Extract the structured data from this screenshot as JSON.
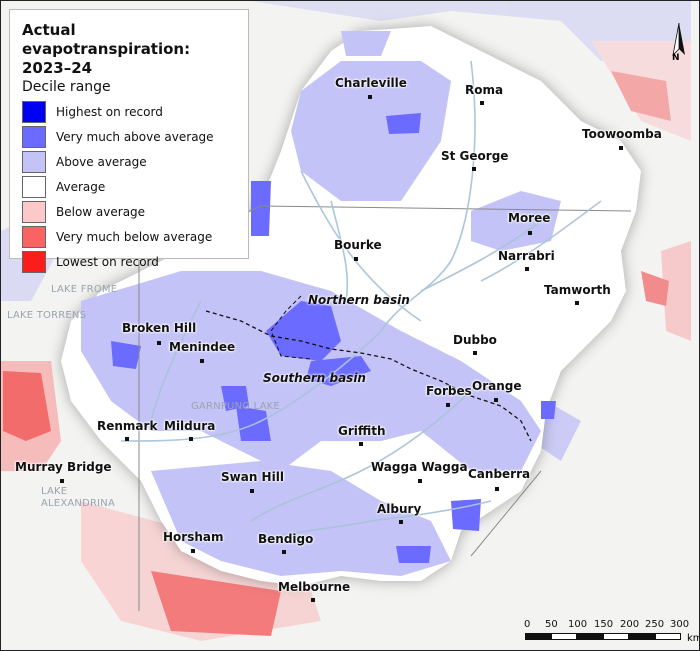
{
  "legend": {
    "title": "Actual evapotranspiration:\n2023–24",
    "subtitle": "Decile range",
    "items": [
      {
        "label": "Highest on record",
        "color": "#0000f5"
      },
      {
        "label": "Very much above average",
        "color": "#6b6bff"
      },
      {
        "label": "Above average",
        "color": "#c3c3f7"
      },
      {
        "label": "Average",
        "color": "#ffffff"
      },
      {
        "label": "Below average",
        "color": "#fcc8c8"
      },
      {
        "label": "Very much below average",
        "color": "#fb6262"
      },
      {
        "label": "Lowest on record",
        "color": "#fb1c1c"
      }
    ]
  },
  "towns": [
    {
      "name": "Charleville"
    },
    {
      "name": "Roma"
    },
    {
      "name": "Toowoomba"
    },
    {
      "name": "St George"
    },
    {
      "name": "Moree"
    },
    {
      "name": "Bourke"
    },
    {
      "name": "Narrabri"
    },
    {
      "name": "Tamworth"
    },
    {
      "name": "Broken Hill"
    },
    {
      "name": "Menindee"
    },
    {
      "name": "Dubbo"
    },
    {
      "name": "Forbes"
    },
    {
      "name": "Orange"
    },
    {
      "name": "Renmark"
    },
    {
      "name": "Mildura"
    },
    {
      "name": "Griffith"
    },
    {
      "name": "Murray Bridge"
    },
    {
      "name": "Wagga Wagga"
    },
    {
      "name": "Canberra"
    },
    {
      "name": "Swan Hill"
    },
    {
      "name": "Albury"
    },
    {
      "name": "Horsham"
    },
    {
      "name": "Bendigo"
    },
    {
      "name": "Melbourne"
    }
  ],
  "basins": {
    "northern": "Northern basin",
    "southern": "Southern basin"
  },
  "water_labels": {
    "lake_frome": "LAKE FROME",
    "lake_torrens": "LAKE TORRENS",
    "garnpung_lake": "GARNPUNG LAKE",
    "lake_alexandrina": "LAKE ALEXANDRINA"
  },
  "north_arrow": {
    "label": "N"
  },
  "scale_bar": {
    "ticks": [
      "0",
      "50",
      "100",
      "150",
      "200",
      "250",
      "300"
    ],
    "unit": "km"
  },
  "colors": {
    "map_background": "#f3f3f1",
    "rivers": "#a9c3d8",
    "borders": "#8a8a8a",
    "basin_divider": "#111111"
  }
}
